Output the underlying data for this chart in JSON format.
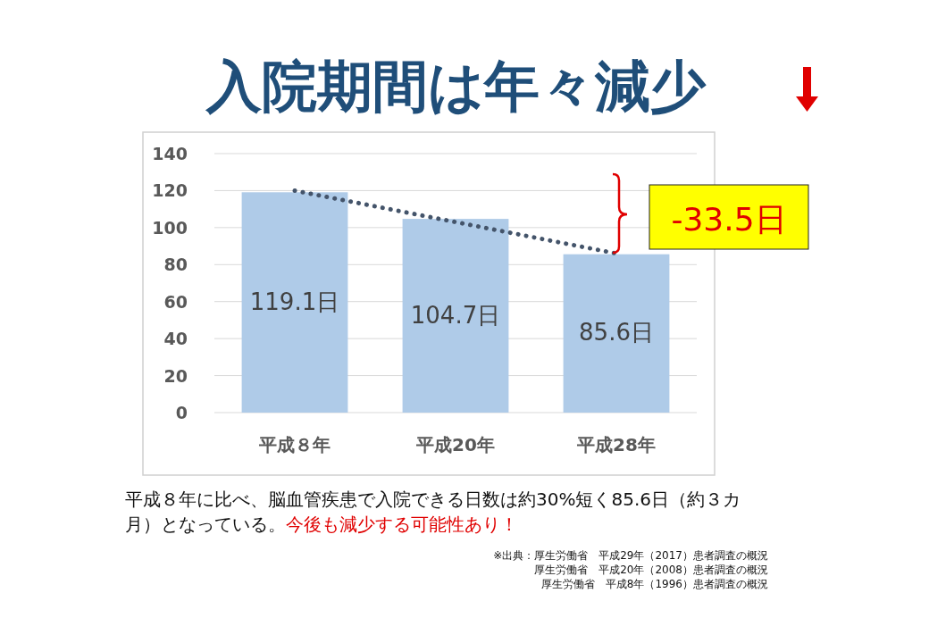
{
  "chart_data": {
    "type": "bar",
    "title": "入院期間は年々減少",
    "categories": [
      "平成８年",
      "平成20年",
      "平成28年"
    ],
    "series": [
      {
        "color": "#afcbe8",
        "values": [
          119.1,
          104.7,
          85.6
        ],
        "value_labels": [
          "119.1日",
          "104.7日",
          "85.6日"
        ]
      },
      {
        "type": "line",
        "color": "#44546a",
        "line_style": "dotted",
        "values": [
          120,
          103,
          86
        ]
      }
    ],
    "ylim": [
      0,
      140
    ],
    "yticks": [
      0,
      20,
      40,
      60,
      80,
      100,
      120,
      140
    ],
    "grid": "y",
    "annotations": [
      "-33.5日",
      "平成８年に比べ、脳血管疾患で入院できる日数は約30%短く85.6日（約３カ月）となっている。",
      "今後も減少する可能性あり！",
      "※出典：厚生労働省　平成29年（2017）患者調査の概況",
      "厚生労働省　平成20年（2008）患者調査の概況",
      "厚生労働省　平成8年（1996）患者調査の概況"
    ]
  }
}
